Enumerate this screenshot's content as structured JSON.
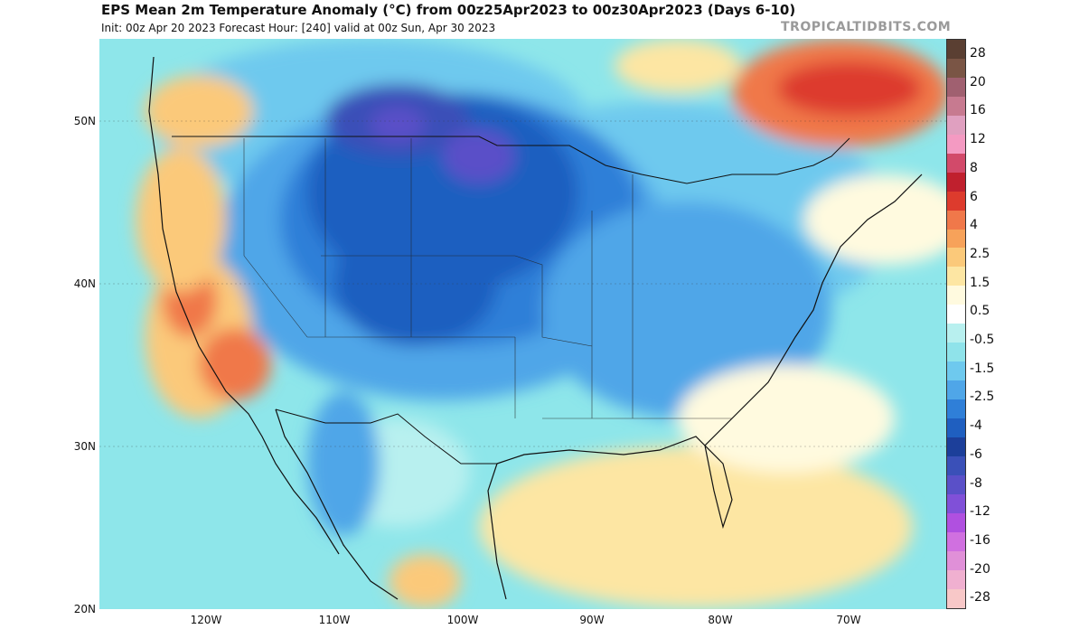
{
  "header": {
    "title": "EPS Mean 2m Temperature Anomaly (°C) from 00z25Apr2023 to 00z30Apr2023 (Days 6-10)",
    "subtitle": "Init: 00z Apr 20 2023   Forecast Hour: [240]   valid at 00z Sun, Apr 30 2023",
    "brand": "TROPICALTIDBITS.COM"
  },
  "map": {
    "lat_labels": [
      "50N",
      "40N",
      "30N",
      "20N"
    ],
    "lon_labels": [
      "120W",
      "110W",
      "100W",
      "90W",
      "80W",
      "70W"
    ]
  },
  "colorbar": {
    "labels": [
      "28",
      "20",
      "16",
      "12",
      "8",
      "6",
      "4",
      "2.5",
      "1.5",
      "0.5",
      "-0.5",
      "-1.5",
      "-2.5",
      "-4",
      "-6",
      "-8",
      "-12",
      "-16",
      "-20",
      "-28"
    ],
    "colors": [
      "#5a3f32",
      "#7a5545",
      "#a06070",
      "#c77a90",
      "#e0a0c0",
      "#f49ac2",
      "#d24a6a",
      "#c0202e",
      "#dd3b2d",
      "#f0784a",
      "#f7a25a",
      "#fbc97a",
      "#fde6a3",
      "#fffadf",
      "#ffffff",
      "#b8f0ef",
      "#8fe3ea",
      "#6ec9ee",
      "#4fa6e8",
      "#2f7fd8",
      "#1f5fc0",
      "#1c3f9a",
      "#3a50b8",
      "#5a50c8",
      "#8050d8",
      "#b050e0",
      "#d070e0",
      "#e090d8",
      "#f0b0d0",
      "#f8c8c8"
    ]
  }
}
